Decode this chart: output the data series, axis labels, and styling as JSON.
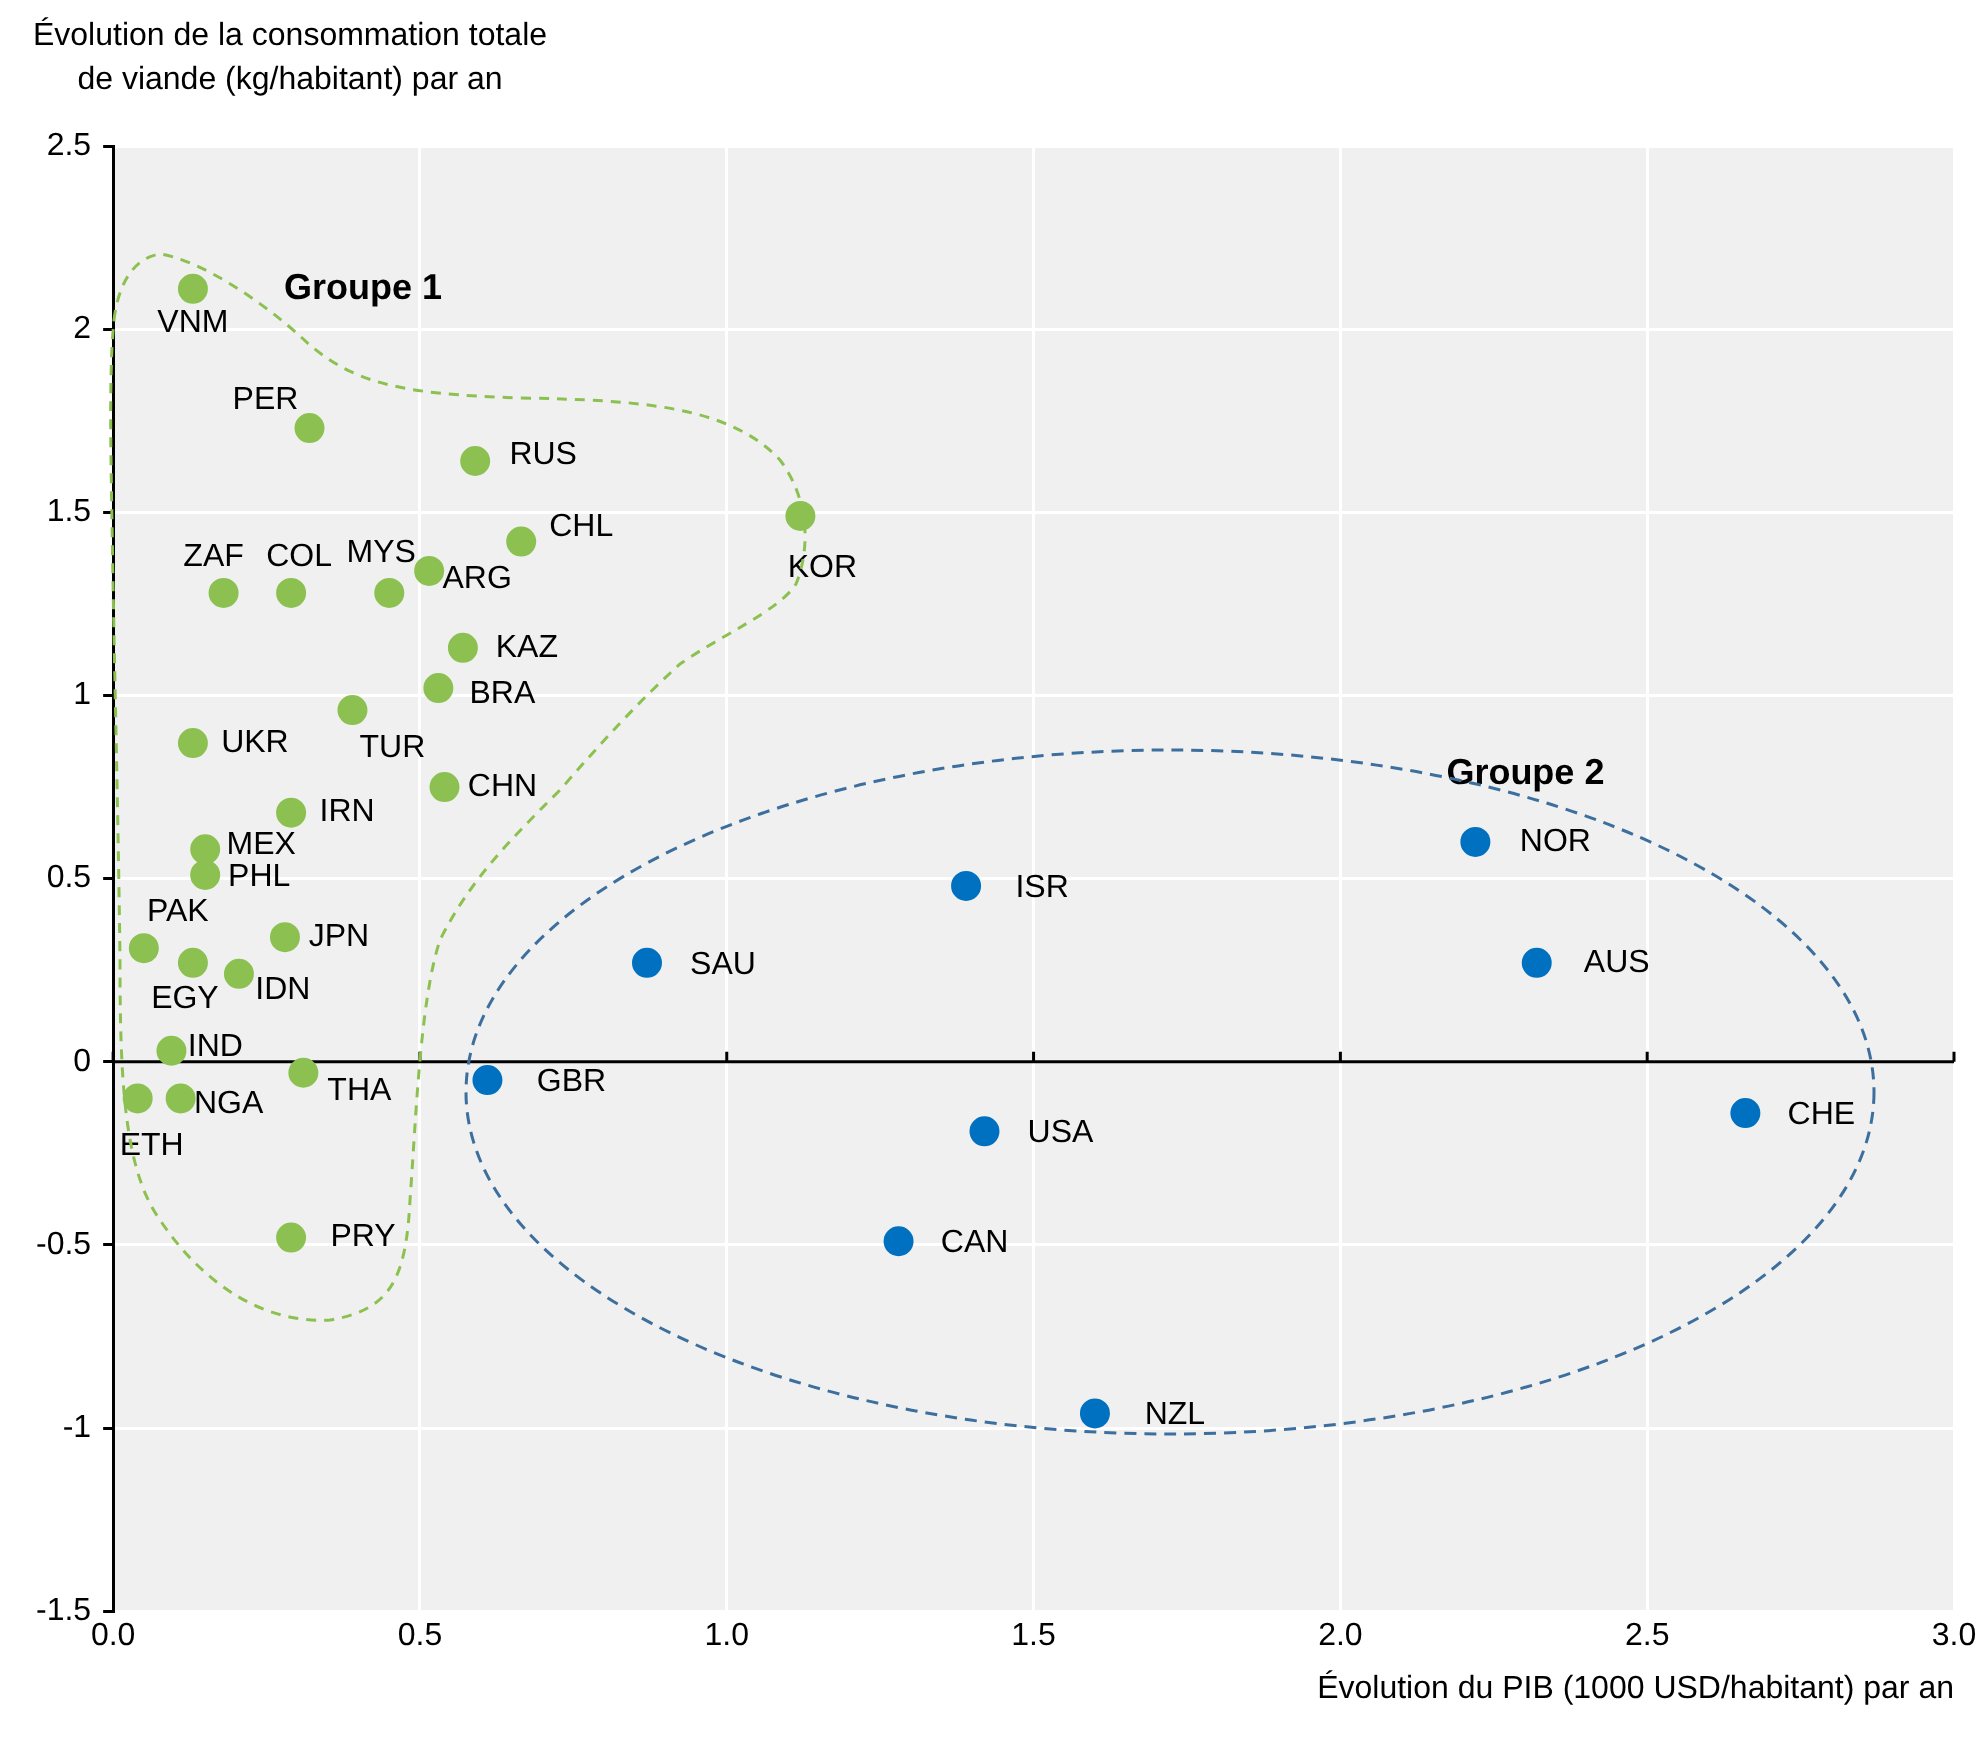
{
  "chart_data": {
    "type": "scatter",
    "xlabel": "Évolution du PIB (1000 USD/habitant) par an",
    "ylabel": "Évolution de la consommation totale\nde viande (kg/habitant) par an",
    "series": [
      {
        "name": "Groupe 1",
        "color": "#8cc152",
        "x": [
          0.13,
          0.32,
          0.59,
          0.665,
          1.12,
          0.18,
          0.29,
          0.45,
          0.515,
          0.57,
          0.53,
          0.39,
          0.13,
          0.54,
          0.29,
          0.15,
          0.15,
          0.05,
          0.28,
          0.13,
          0.205,
          0.095,
          0.31,
          0.04,
          0.11,
          0.29
        ],
        "values": [
          2.11,
          1.73,
          1.64,
          1.42,
          1.49,
          1.28,
          1.28,
          1.28,
          1.34,
          1.13,
          1.02,
          0.96,
          0.87,
          0.75,
          0.68,
          0.58,
          0.51,
          0.31,
          0.34,
          0.27,
          0.24,
          0.03,
          -0.03,
          -0.1,
          -0.1,
          -0.48
        ]
      },
      {
        "name": "Groupe 2",
        "color": "#0070c0",
        "x": [
          0.87,
          0.61,
          1.39,
          1.42,
          1.28,
          1.6,
          2.22,
          2.32,
          2.66
        ],
        "values": [
          0.27,
          -0.05,
          0.48,
          -0.19,
          -0.49,
          -0.96,
          0.6,
          0.27,
          -0.14
        ]
      }
    ],
    "annotations": [
      {
        "text": "VNM",
        "x": 0.13,
        "y": 2.11
      },
      {
        "text": "PER",
        "x": 0.32,
        "y": 1.73
      },
      {
        "text": "RUS",
        "x": 0.59,
        "y": 1.64
      },
      {
        "text": "CHL",
        "x": 0.665,
        "y": 1.42
      },
      {
        "text": "KOR",
        "x": 1.12,
        "y": 1.49
      },
      {
        "text": "ZAF",
        "x": 0.18,
        "y": 1.28
      },
      {
        "text": "COL",
        "x": 0.29,
        "y": 1.28
      },
      {
        "text": "MYS",
        "x": 0.45,
        "y": 1.28
      },
      {
        "text": "ARG",
        "x": 0.515,
        "y": 1.34
      },
      {
        "text": "KAZ",
        "x": 0.57,
        "y": 1.13
      },
      {
        "text": "BRA",
        "x": 0.53,
        "y": 1.02
      },
      {
        "text": "TUR",
        "x": 0.39,
        "y": 0.96
      },
      {
        "text": "UKR",
        "x": 0.13,
        "y": 0.87
      },
      {
        "text": "CHN",
        "x": 0.54,
        "y": 0.75
      },
      {
        "text": "IRN",
        "x": 0.29,
        "y": 0.68
      },
      {
        "text": "MEX",
        "x": 0.15,
        "y": 0.58
      },
      {
        "text": "PHL",
        "x": 0.15,
        "y": 0.51
      },
      {
        "text": "PAK",
        "x": 0.05,
        "y": 0.31
      },
      {
        "text": "JPN",
        "x": 0.28,
        "y": 0.34
      },
      {
        "text": "EGY",
        "x": 0.13,
        "y": 0.27
      },
      {
        "text": "IDN",
        "x": 0.205,
        "y": 0.24
      },
      {
        "text": "IND",
        "x": 0.095,
        "y": 0.03
      },
      {
        "text": "THA",
        "x": 0.31,
        "y": -0.03
      },
      {
        "text": "ETH",
        "x": 0.04,
        "y": -0.1
      },
      {
        "text": "NGA",
        "x": 0.11,
        "y": -0.1
      },
      {
        "text": "PRY",
        "x": 0.29,
        "y": -0.48
      },
      {
        "text": "SAU",
        "x": 0.87,
        "y": 0.27
      },
      {
        "text": "GBR",
        "x": 0.61,
        "y": -0.05
      },
      {
        "text": "ISR",
        "x": 1.39,
        "y": 0.48
      },
      {
        "text": "USA",
        "x": 1.42,
        "y": -0.19
      },
      {
        "text": "CAN",
        "x": 1.28,
        "y": -0.49
      },
      {
        "text": "NZL",
        "x": 1.6,
        "y": -0.96
      },
      {
        "text": "NOR",
        "x": 2.22,
        "y": 0.6
      },
      {
        "text": "AUS",
        "x": 2.32,
        "y": 0.27
      },
      {
        "text": "CHE",
        "x": 2.66,
        "y": -0.14
      }
    ],
    "xlim": [
      0,
      3
    ],
    "xticks": [
      {
        "value": 0,
        "label": "0.0"
      },
      0.5,
      {
        "value": 1,
        "label": "1.0"
      },
      1.5,
      {
        "value": 2,
        "label": "2.0"
      },
      2.5,
      {
        "value": 3,
        "label": "3.0"
      }
    ],
    "ylim": [
      -1.5,
      2.5
    ],
    "yticks": [
      -1.5,
      -1,
      -0.5,
      0,
      0.5,
      1,
      1.5,
      2,
      2.5
    ],
    "ref_lines": [
      {
        "axis": "y",
        "value": 0,
        "color": "#000000"
      }
    ],
    "grid": true,
    "legend": false,
    "marker": "circle"
  }
}
